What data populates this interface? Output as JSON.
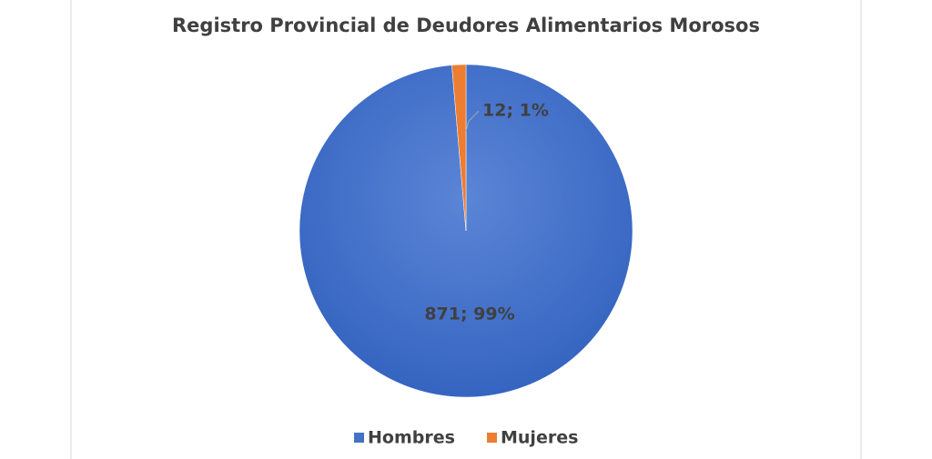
{
  "chart_data": {
    "type": "pie",
    "title": "Registro Provincial de Deudores Alimentarios Morosos",
    "categories": [
      "Hombres",
      "Mujeres"
    ],
    "values": [
      871,
      12
    ],
    "value_labels": [
      "871; 99%",
      "12; 1%"
    ],
    "colors": [
      "#4472c4",
      "#ed7d31"
    ],
    "legend": "bottom"
  }
}
